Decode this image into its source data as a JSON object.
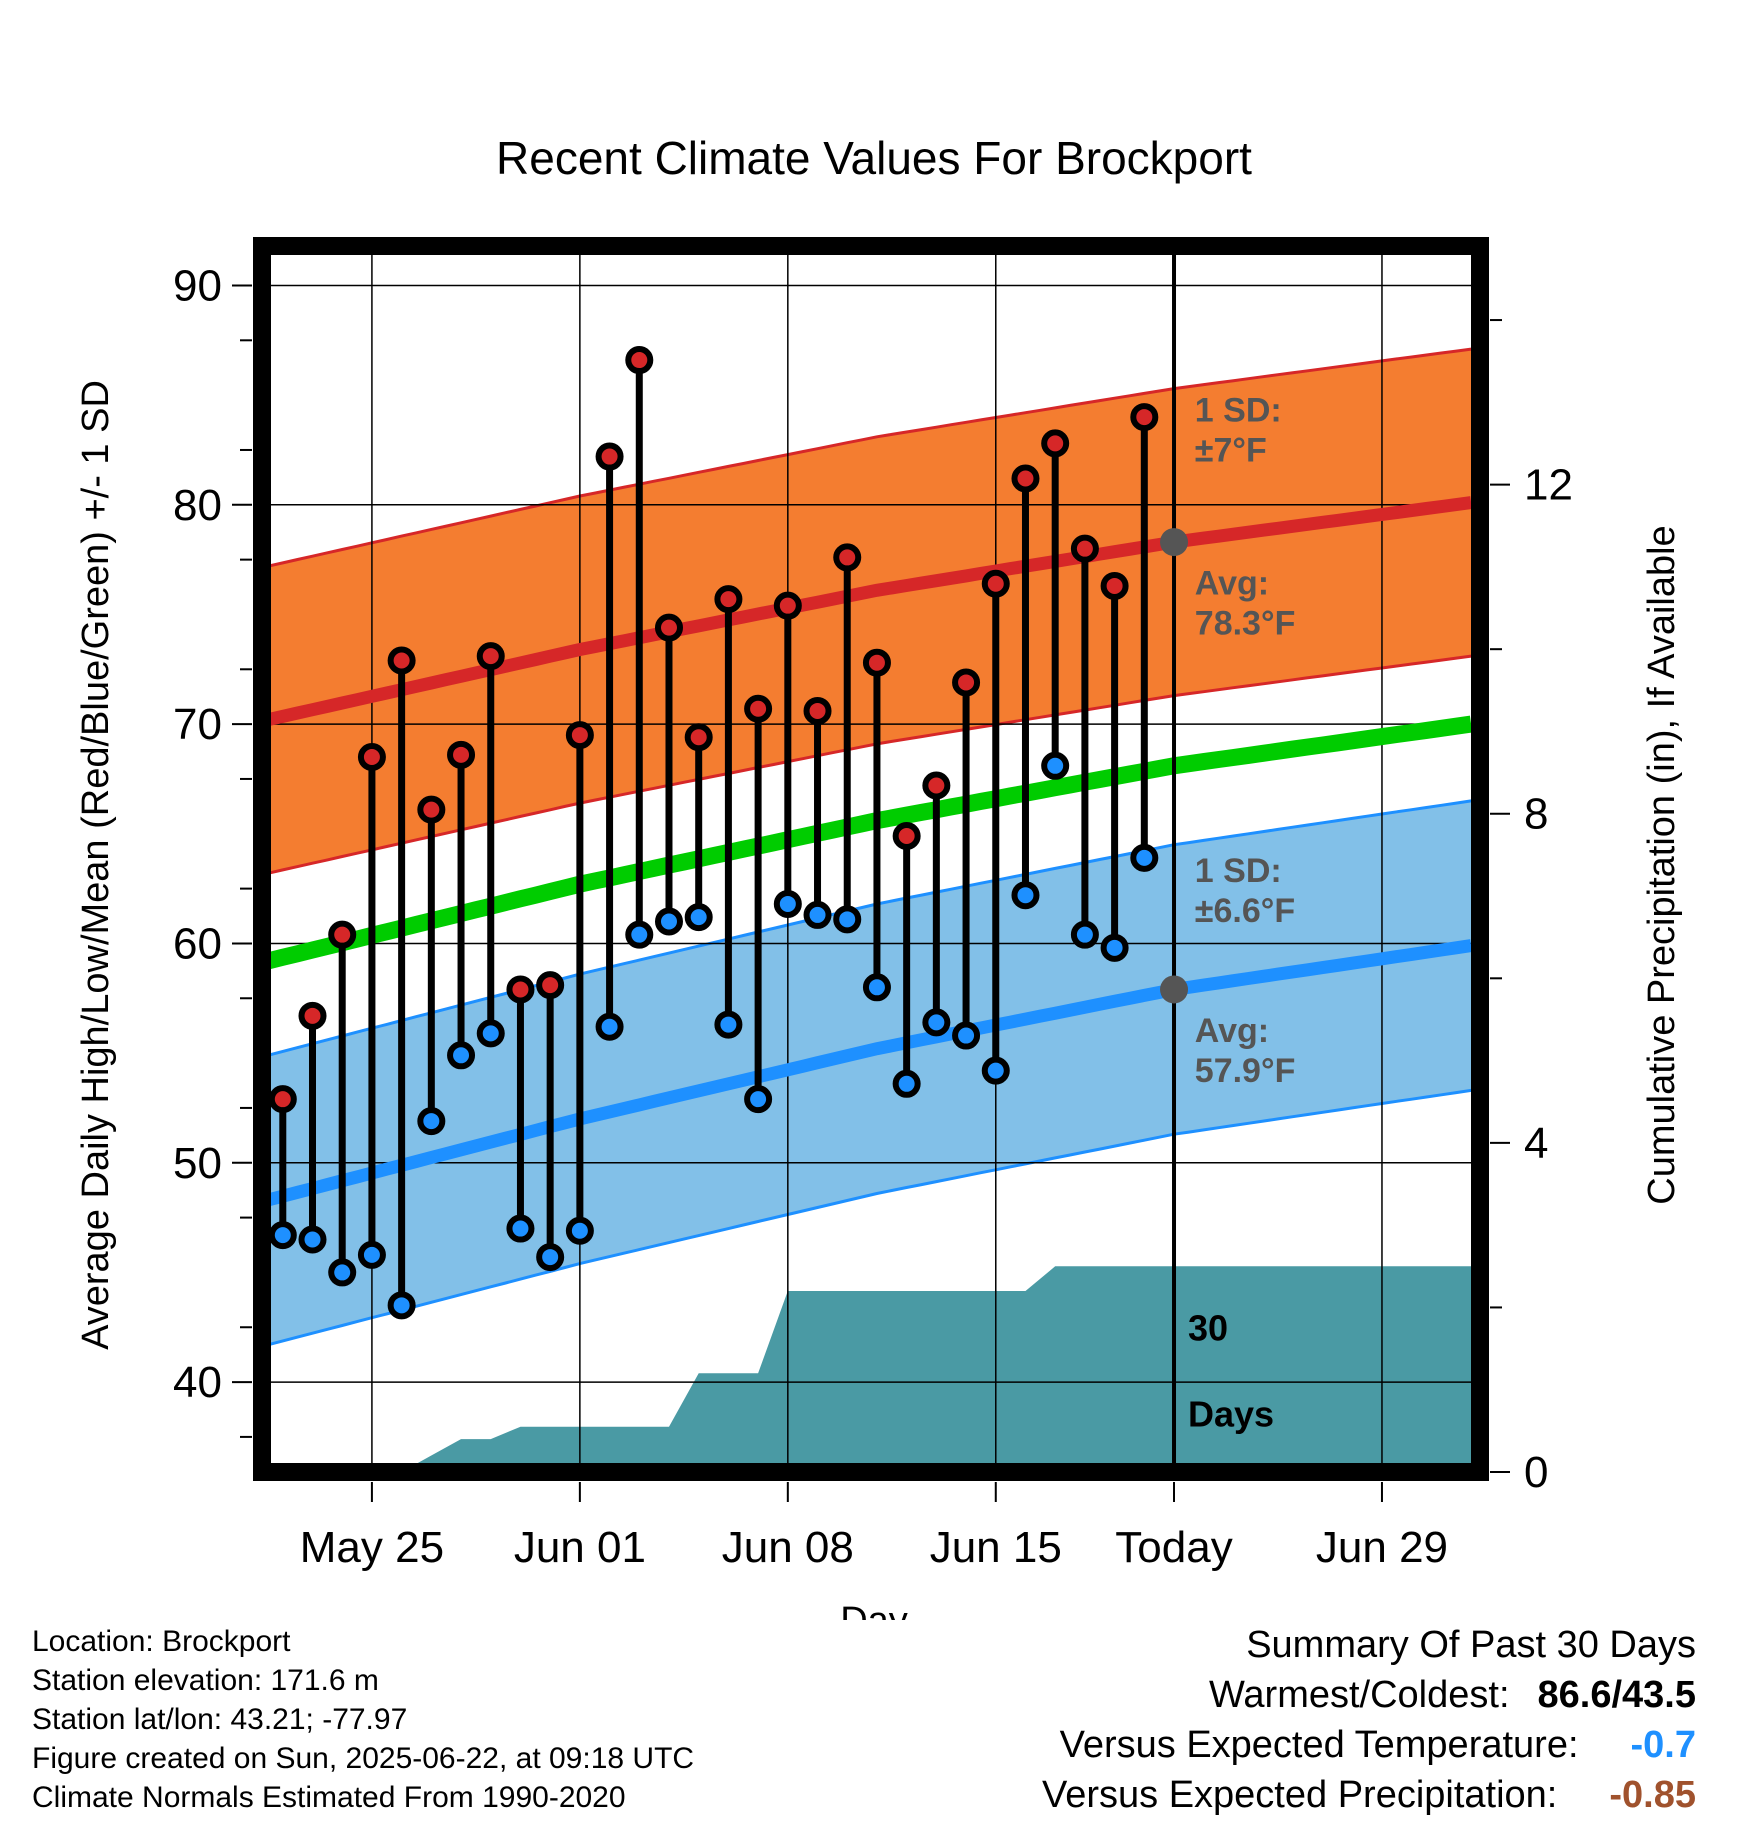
{
  "chart_data": {
    "type": "line",
    "title": "Recent Climate Values For Brockport",
    "xlabel": "Day",
    "ylabel": "Average Daily High/Low/Mean (Red/Blue/Green) +/- 1 SD",
    "y2label": "Cumulative Precipitation (in), If Available",
    "ylim": [
      35.9,
      91.8
    ],
    "y2lim": [
      0,
      14.9
    ],
    "xlim": [
      -30.7,
      10.3
    ],
    "x_unit": "days relative to today (2025-06-22)",
    "x_ticks": [
      -27,
      -20,
      -13,
      -6,
      0,
      7
    ],
    "x_tick_labels": [
      "May 25",
      "Jun 01",
      "Jun 08",
      "Jun 15",
      "Today",
      "Jun 29"
    ],
    "y_ticks": [
      40,
      50,
      60,
      70,
      80,
      90
    ],
    "y2_ticks": [
      0,
      4,
      8,
      12
    ],
    "grid": true,
    "today_line_x": 0,
    "today_line_label": [
      "30",
      "Days"
    ],
    "normal_high": {
      "color": "#d62728",
      "band_color": "#f47d30",
      "x": [
        -30.5,
        -20,
        -10,
        0,
        10
      ],
      "mean": [
        70.2,
        73.4,
        76.1,
        78.3,
        80.1
      ],
      "sd": 7,
      "label_sd": [
        "1 SD:",
        "±7°F"
      ],
      "label_avg": [
        "Avg:",
        "78.3°F"
      ]
    },
    "normal_low": {
      "color": "#1e90ff",
      "band_color": "#82c0e8",
      "x": [
        -30.5,
        -20,
        -10,
        0,
        10
      ],
      "mean": [
        48.3,
        52.0,
        55.2,
        57.9,
        59.9
      ],
      "sd": 6.6,
      "label_sd": [
        "1 SD:",
        "±6.6°F"
      ],
      "label_avg": [
        "Avg:",
        "57.9°F"
      ]
    },
    "normal_mean": {
      "color": "#00cc00",
      "x": [
        -30.5,
        -20,
        -10,
        0,
        10
      ],
      "values": [
        59.2,
        62.7,
        65.6,
        68.1,
        70.0
      ]
    },
    "daily": {
      "x": [
        -30,
        -29,
        -28,
        -27,
        -26,
        -25,
        -24,
        -23,
        -22,
        -21,
        -20,
        -19,
        -18,
        -17,
        -16,
        -15,
        -14,
        -13,
        -12,
        -11,
        -10,
        -9,
        -8,
        -7,
        -6,
        -5,
        -4,
        -3,
        -2,
        -1
      ],
      "high": [
        52.9,
        56.7,
        60.4,
        68.5,
        72.9,
        66.1,
        68.6,
        73.1,
        57.9,
        58.1,
        69.5,
        82.2,
        86.6,
        74.4,
        69.4,
        75.7,
        70.7,
        75.4,
        70.6,
        77.6,
        72.8,
        64.9,
        67.2,
        71.9,
        76.4,
        81.2,
        82.8,
        78.0,
        76.3,
        84.0
      ],
      "low": [
        46.7,
        46.5,
        45.0,
        45.8,
        43.5,
        51.9,
        54.9,
        55.9,
        47.0,
        45.7,
        46.9,
        56.2,
        60.4,
        61.0,
        61.2,
        56.3,
        52.9,
        61.8,
        61.3,
        61.1,
        58.0,
        53.6,
        56.4,
        55.8,
        54.2,
        62.2,
        68.1,
        60.4,
        59.8,
        63.9
      ],
      "high_color": "#d62728",
      "low_color": "#1e90ff"
    },
    "precip": {
      "color": "#4a9aa4",
      "x": [
        -30.5,
        -26,
        -25,
        -24,
        -23,
        -22,
        -21,
        -20,
        -18,
        -17,
        -16,
        -15,
        -14,
        -13,
        -12,
        -8,
        -5,
        -4,
        -3,
        0,
        10
      ],
      "values": [
        0,
        0,
        0.2,
        0.4,
        0.4,
        0.55,
        0.55,
        0.55,
        0.55,
        0.55,
        1.2,
        1.2,
        1.2,
        2.2,
        2.2,
        2.2,
        2.2,
        2.5,
        2.5,
        2.5,
        2.5
      ]
    }
  },
  "footer": {
    "location": "Location: Brockport",
    "elevation": "Station elevation: 171.6 m",
    "latlon": "Station lat/lon: 43.21; -77.97",
    "created": "Figure created on Sun, 2025-06-22, at 09:18 UTC",
    "normals": "Climate Normals Estimated From 1990-2020"
  },
  "summary": {
    "title": "Summary Of Past 30 Days",
    "warm_cold_label": "Warmest/Coldest:",
    "warm_cold_value": "86.6/43.5",
    "temp_label": "Versus Expected Temperature:",
    "temp_value": "-0.7",
    "temp_color": "#1e90ff",
    "precip_label": "Versus Expected Precipitation:",
    "precip_value": "-0.85",
    "precip_color": "#a0522d"
  }
}
